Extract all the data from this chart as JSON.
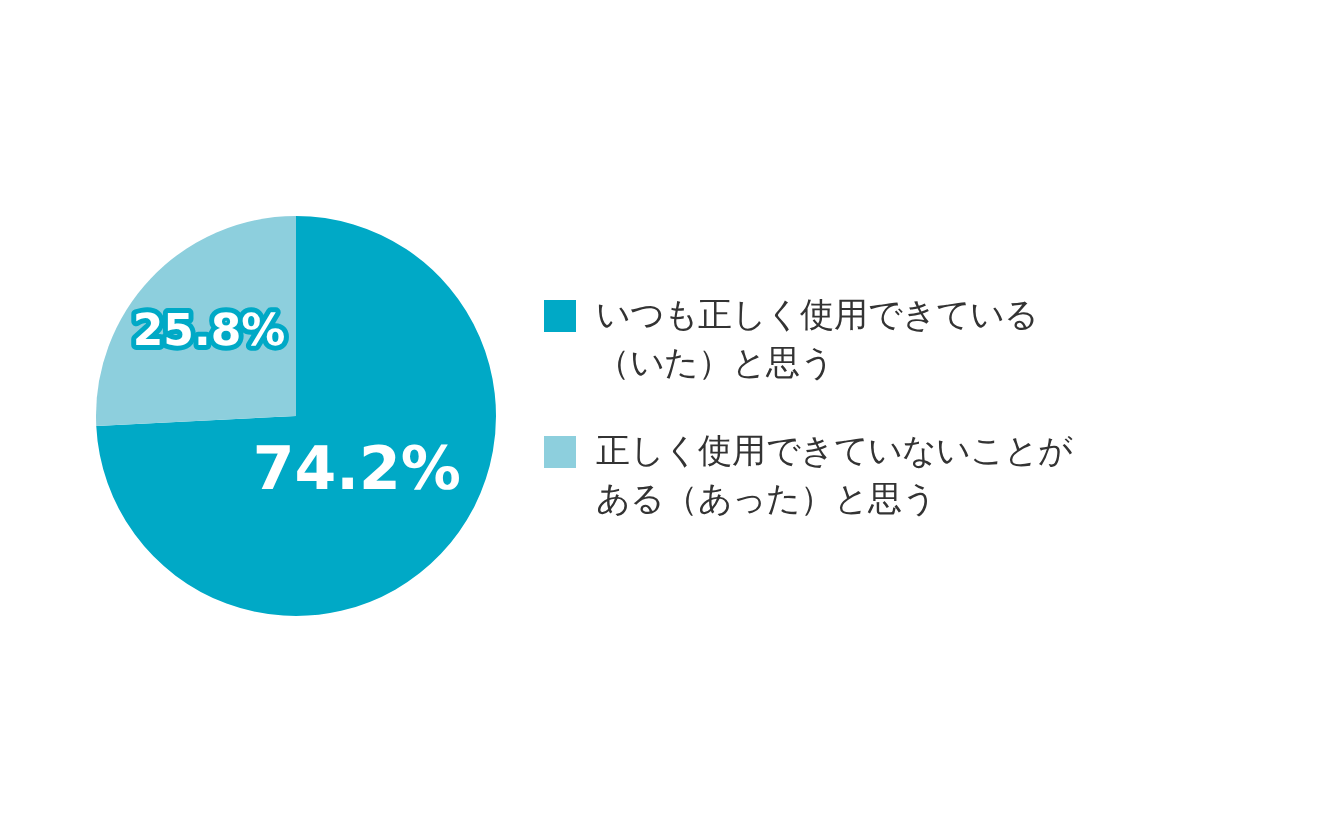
{
  "chart_data": {
    "type": "pie",
    "categories": [
      "いつも正しく使用できている（いた）と思う",
      "正しく使用できていないことがある（あった）と思う"
    ],
    "values": [
      74.2,
      25.8
    ],
    "colors": [
      "#00a9c6",
      "#8dcfdd"
    ],
    "value_labels": [
      "74.2%",
      "25.8%"
    ],
    "legend": "right"
  }
}
